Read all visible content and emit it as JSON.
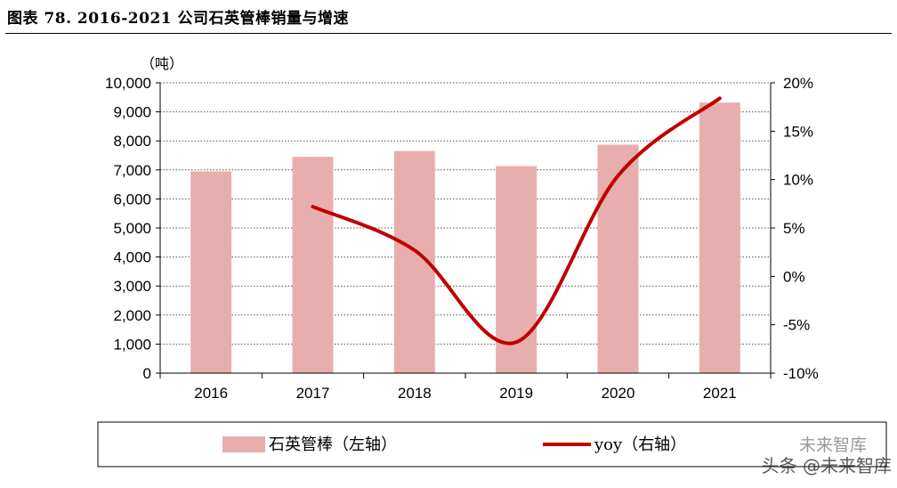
{
  "title": "图表 78. 2016-2021 公司石英管棒销量与增速",
  "watermark": {
    "source": "头条 @未来智库",
    "logo_text": "未来智库"
  },
  "colors": {
    "bar": "#e8aeae",
    "line": "#c00000",
    "grid": "#555555",
    "axis": "#000000"
  },
  "chart_data": {
    "type": "bar",
    "title": "2016-2021 公司石英管棒销量与增速",
    "categories": [
      "2016",
      "2017",
      "2018",
      "2019",
      "2020",
      "2021"
    ],
    "series": [
      {
        "name": "石英管棒（左轴）",
        "type": "bar",
        "axis": "left",
        "values": [
          6950,
          7450,
          7650,
          7130,
          7870,
          9320
        ]
      },
      {
        "name": "yoy（右轴）",
        "type": "line",
        "axis": "right",
        "values": [
          null,
          7.2,
          2.7,
          -6.8,
          10.4,
          18.4
        ]
      }
    ],
    "left_axis": {
      "unit_label": "（吨）",
      "ylim": [
        0,
        10000
      ],
      "tick_labels": [
        "0",
        "1,000",
        "2,000",
        "3,000",
        "4,000",
        "5,000",
        "6,000",
        "7,000",
        "8,000",
        "9,000",
        "10,000"
      ]
    },
    "right_axis": {
      "ylim": [
        -10,
        20
      ],
      "tick_labels": [
        "-10%",
        "-5%",
        "0%",
        "5%",
        "10%",
        "15%",
        "20%"
      ]
    },
    "legend": {
      "position": "bottom",
      "items": [
        "石英管棒（左轴）",
        "yoy（右轴）"
      ]
    },
    "grid": true
  }
}
